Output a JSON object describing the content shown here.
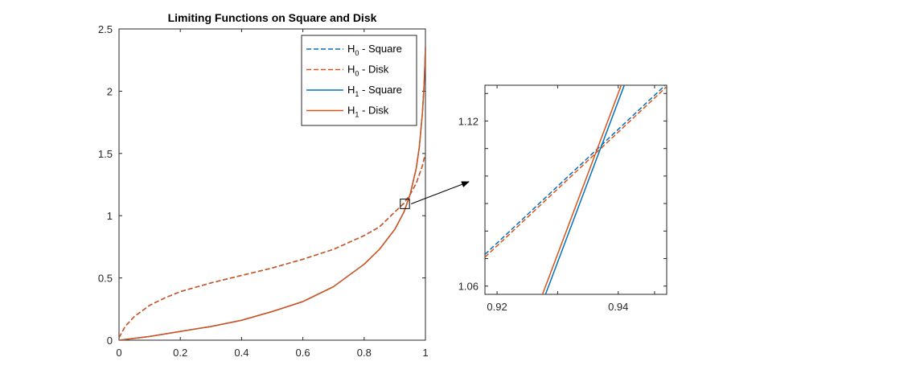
{
  "chart_data": [
    {
      "type": "line",
      "title": "Limiting Functions on Square and Disk",
      "xlabel": "",
      "ylabel": "",
      "xlim": [
        0,
        1
      ],
      "ylim": [
        0,
        2.5
      ],
      "x_ticks": [
        "0",
        "0.2",
        "0.4",
        "0.6",
        "0.8",
        "1"
      ],
      "y_ticks": [
        "0",
        "0.5",
        "1",
        "1.5",
        "2",
        "2.5"
      ],
      "grid": false,
      "legend": "top-right",
      "legend_entries": [
        {
          "base": "H",
          "sub": "0",
          "suffix": " - Square",
          "color": "#0072BD",
          "style": "dashed"
        },
        {
          "base": "H",
          "sub": "0",
          "suffix": " - Disk",
          "color": "#D95319",
          "style": "dashed"
        },
        {
          "base": "H",
          "sub": "1",
          "suffix": " - Square",
          "color": "#0072BD",
          "style": "solid"
        },
        {
          "base": "H",
          "sub": "1",
          "suffix": " - Disk",
          "color": "#D95319",
          "style": "solid"
        }
      ],
      "series": [
        {
          "name": "H0 - Square",
          "color": "#0072BD",
          "style": "dashed",
          "x": [
            0,
            0.02,
            0.05,
            0.1,
            0.15,
            0.2,
            0.3,
            0.4,
            0.5,
            0.6,
            0.7,
            0.8,
            0.85,
            0.9,
            0.93,
            0.95,
            0.97,
            0.98,
            0.99,
            0.995,
            1.0
          ],
          "y": [
            0.02,
            0.11,
            0.19,
            0.28,
            0.34,
            0.39,
            0.46,
            0.52,
            0.58,
            0.65,
            0.73,
            0.84,
            0.91,
            1.03,
            1.1,
            1.17,
            1.26,
            1.33,
            1.4,
            1.45,
            1.5
          ]
        },
        {
          "name": "H0 - Disk",
          "color": "#D95319",
          "style": "dashed",
          "x": [
            0,
            0.02,
            0.05,
            0.1,
            0.15,
            0.2,
            0.3,
            0.4,
            0.5,
            0.6,
            0.7,
            0.8,
            0.85,
            0.9,
            0.93,
            0.95,
            0.97,
            0.98,
            0.99,
            0.995,
            1.0
          ],
          "y": [
            0.02,
            0.11,
            0.19,
            0.28,
            0.34,
            0.39,
            0.46,
            0.52,
            0.58,
            0.65,
            0.73,
            0.84,
            0.91,
            1.03,
            1.1,
            1.17,
            1.26,
            1.33,
            1.4,
            1.45,
            1.5
          ]
        },
        {
          "name": "H1 - Square",
          "color": "#0072BD",
          "style": "solid",
          "x": [
            0,
            0.1,
            0.2,
            0.3,
            0.4,
            0.5,
            0.6,
            0.7,
            0.8,
            0.85,
            0.9,
            0.93,
            0.95,
            0.97,
            0.98,
            0.99,
            0.995,
            0.998,
            1.0
          ],
          "y": [
            0,
            0.03,
            0.07,
            0.11,
            0.16,
            0.23,
            0.31,
            0.43,
            0.61,
            0.73,
            0.89,
            1.03,
            1.17,
            1.38,
            1.55,
            1.82,
            2.02,
            2.2,
            2.36
          ]
        },
        {
          "name": "H1 - Disk",
          "color": "#D95319",
          "style": "solid",
          "x": [
            0,
            0.1,
            0.2,
            0.3,
            0.4,
            0.5,
            0.6,
            0.7,
            0.8,
            0.85,
            0.9,
            0.93,
            0.95,
            0.97,
            0.98,
            0.99,
            0.995,
            0.998,
            1.0
          ],
          "y": [
            0,
            0.03,
            0.07,
            0.11,
            0.16,
            0.23,
            0.31,
            0.43,
            0.61,
            0.73,
            0.89,
            1.03,
            1.17,
            1.38,
            1.55,
            1.82,
            2.02,
            2.2,
            2.36
          ]
        }
      ],
      "zoom_box": {
        "xlim": [
          0.918,
          0.948
        ],
        "ylim": [
          1.057,
          1.133
        ]
      }
    },
    {
      "type": "line",
      "title": "",
      "xlabel": "",
      "ylabel": "",
      "xlim": [
        0.918,
        0.948
      ],
      "ylim": [
        1.057,
        1.133
      ],
      "x_ticks": [
        "0.92",
        "0.94"
      ],
      "y_ticks": [
        "1.06",
        "1.12"
      ],
      "grid": false,
      "series": [
        {
          "name": "H0 - Square",
          "color": "#0072BD",
          "style": "dashed",
          "x": [
            0.918,
            0.948
          ],
          "y": [
            1.0715,
            1.1335
          ]
        },
        {
          "name": "H0 - Disk",
          "color": "#D95319",
          "style": "dashed",
          "x": [
            0.918,
            0.948
          ],
          "y": [
            1.0705,
            1.1325
          ]
        },
        {
          "name": "H1 - Square",
          "color": "#0072BD",
          "style": "solid",
          "x": [
            0.928,
            0.941
          ],
          "y": [
            1.057,
            1.133
          ]
        },
        {
          "name": "H1 - Disk",
          "color": "#D95319",
          "style": "solid",
          "x": [
            0.9275,
            0.9405
          ],
          "y": [
            1.057,
            1.133
          ]
        }
      ]
    }
  ]
}
